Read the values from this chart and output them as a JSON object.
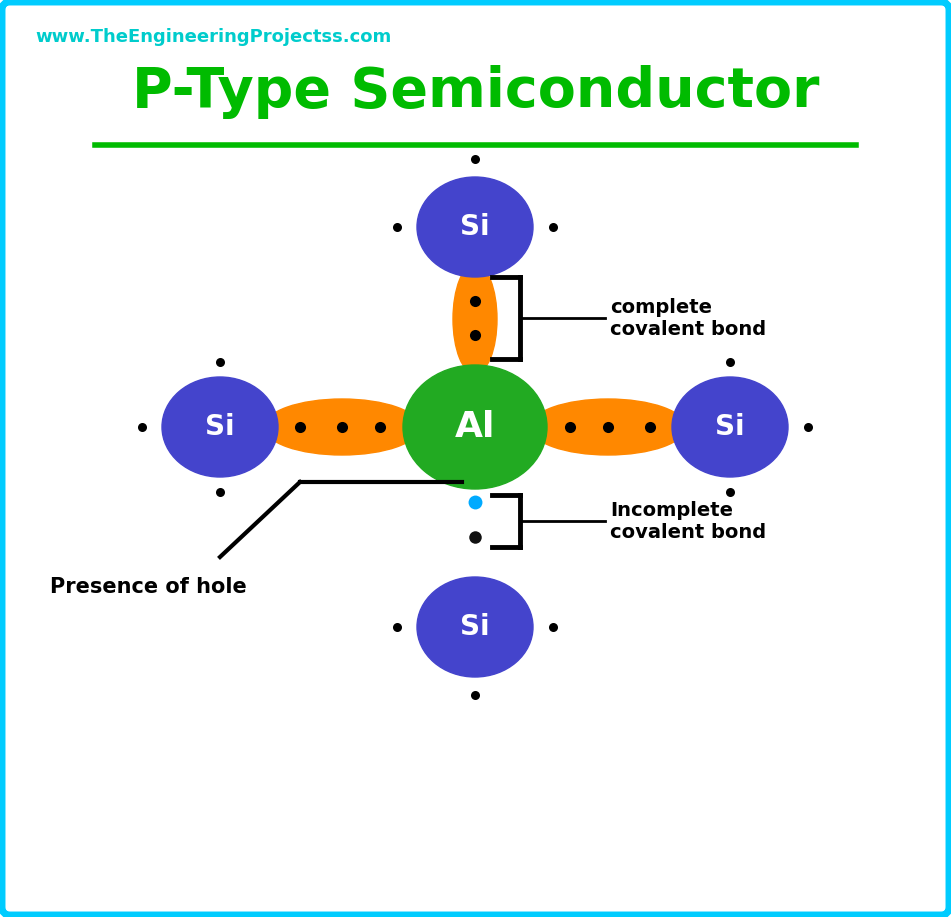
{
  "title": "P-Type Semiconductor",
  "website": "www.TheEngineeringProjectss.com",
  "title_color": "#00bb00",
  "website_color": "#00cccc",
  "background_color": "#ffffff",
  "border_color": "#00ccff",
  "al_color": "#22aa22",
  "si_color": "#4444cc",
  "bond_color": "#ff8800",
  "hole_color": "#00aaff",
  "electron_color": "#111111",
  "complete_bond_label": "complete\ncovalent bond",
  "incomplete_bond_label": "Incomplete\ncovalent bond",
  "hole_label": "Presence of hole"
}
